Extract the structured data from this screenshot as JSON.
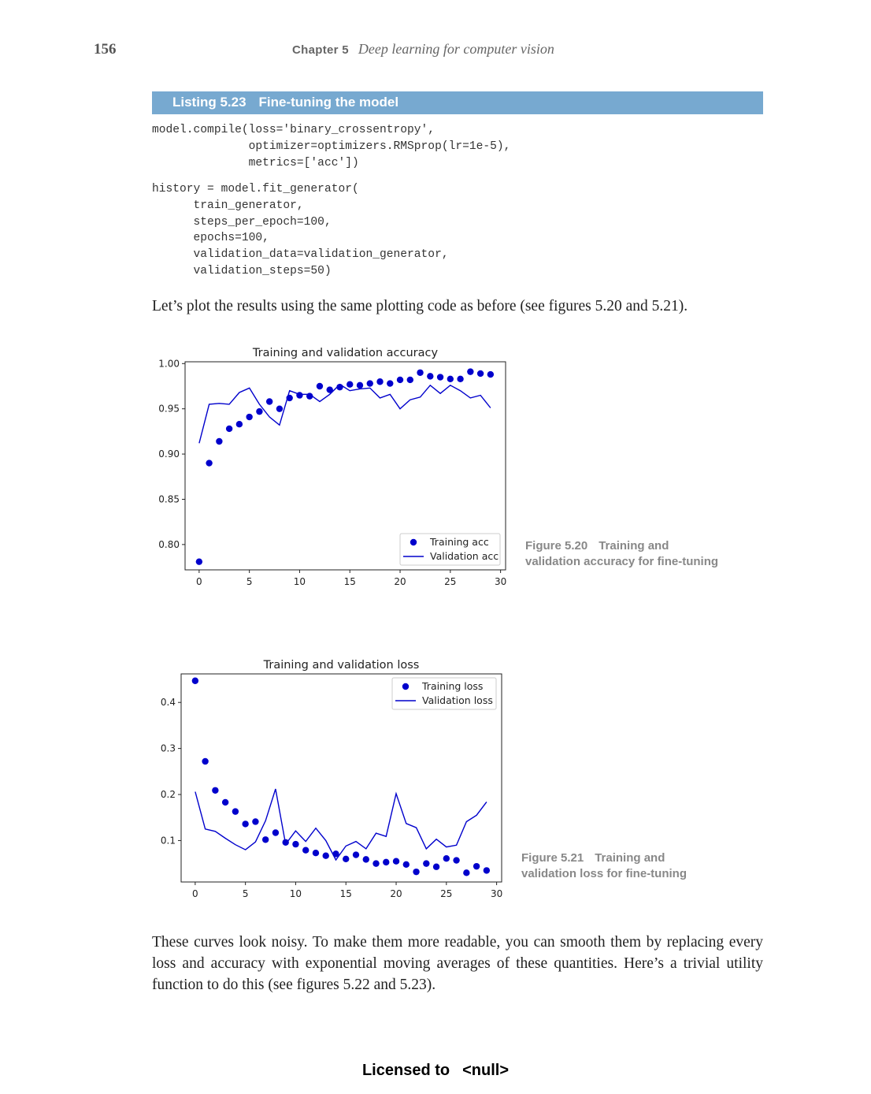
{
  "header": {
    "page_number": "156",
    "chapter_label": "Chapter 5",
    "chapter_title": "Deep learning for computer vision"
  },
  "listing": {
    "label": "Listing 5.23",
    "title": "Fine-tuning the model",
    "code_block_1": "model.compile(loss='binary_crossentropy',\n              optimizer=optimizers.RMSprop(lr=1e-5),\n              metrics=['acc'])",
    "code_block_2": "history = model.fit_generator(\n      train_generator,\n      steps_per_epoch=100,\n      epochs=100,\n      validation_data=validation_generator,\n      validation_steps=50)"
  },
  "body": {
    "paragraph_1": "Let’s plot the results using the same plotting code as before (see figures 5.20 and 5.21).",
    "paragraph_2": "These curves look noisy. To make them more readable, you can smooth them by replacing every loss and accuracy with exponential moving averages of these quantities. Here’s a trivial utility function to do this (see figures 5.22 and 5.23)."
  },
  "figures": [
    {
      "number": "Figure 5.20",
      "caption_line_1": "Training and",
      "caption_line_2": "validation accuracy for fine-tuning"
    },
    {
      "number": "Figure 5.21",
      "caption_line_1": "Training and",
      "caption_line_2": "validation loss for fine-tuning"
    }
  ],
  "footer": {
    "licensed_to": "Licensed to",
    "licensee": "<null>"
  },
  "colors": {
    "listing_bar": "#77a9d0",
    "series": "#0000cc"
  },
  "chart_data": [
    {
      "type": "line",
      "title": "Training and validation accuracy",
      "xlabel": "",
      "ylabel": "",
      "xlim": [
        -1.4,
        30.5
      ],
      "ylim": [
        0.772,
        1.002
      ],
      "x_ticks": [
        0,
        5,
        10,
        15,
        20,
        25,
        30
      ],
      "y_ticks": [
        0.8,
        0.85,
        0.9,
        0.95,
        1.0
      ],
      "y_tick_labels": [
        "0.80",
        "0.85",
        "0.90",
        "0.95",
        "1.00"
      ],
      "grid": false,
      "legend_position": "bottom-right",
      "x": [
        0,
        1,
        2,
        3,
        4,
        5,
        6,
        7,
        8,
        9,
        10,
        11,
        12,
        13,
        14,
        15,
        16,
        17,
        18,
        19,
        20,
        21,
        22,
        23,
        24,
        25,
        26,
        27,
        28,
        29
      ],
      "series": [
        {
          "name": "Training acc",
          "style": "dots",
          "values": [
            0.781,
            0.89,
            0.914,
            0.928,
            0.933,
            0.941,
            0.947,
            0.958,
            0.95,
            0.962,
            0.965,
            0.964,
            0.975,
            0.971,
            0.974,
            0.977,
            0.976,
            0.978,
            0.98,
            0.978,
            0.982,
            0.982,
            0.99,
            0.986,
            0.985,
            0.983,
            0.983,
            0.991,
            0.989,
            0.988
          ]
        },
        {
          "name": "Validation acc",
          "style": "line",
          "values": [
            0.912,
            0.955,
            0.956,
            0.955,
            0.968,
            0.973,
            0.955,
            0.941,
            0.932,
            0.97,
            0.966,
            0.966,
            0.958,
            0.966,
            0.977,
            0.97,
            0.972,
            0.973,
            0.962,
            0.966,
            0.95,
            0.96,
            0.963,
            0.976,
            0.967,
            0.976,
            0.97,
            0.962,
            0.965,
            0.951
          ]
        }
      ]
    },
    {
      "type": "line",
      "title": "Training and validation loss",
      "xlabel": "",
      "ylabel": "",
      "xlim": [
        -1.4,
        30.5
      ],
      "ylim": [
        0.01,
        0.462
      ],
      "x_ticks": [
        0,
        5,
        10,
        15,
        20,
        25,
        30
      ],
      "y_ticks": [
        0.1,
        0.2,
        0.3,
        0.4
      ],
      "y_tick_labels": [
        "0.1",
        "0.2",
        "0.3",
        "0.4"
      ],
      "grid": false,
      "legend_position": "top-right",
      "x": [
        0,
        1,
        2,
        3,
        4,
        5,
        6,
        7,
        8,
        9,
        10,
        11,
        12,
        13,
        14,
        15,
        16,
        17,
        18,
        19,
        20,
        21,
        22,
        23,
        24,
        25,
        26,
        27,
        28,
        29
      ],
      "series": [
        {
          "name": "Training loss",
          "style": "dots",
          "values": [
            0.447,
            0.272,
            0.209,
            0.183,
            0.163,
            0.136,
            0.141,
            0.102,
            0.117,
            0.096,
            0.092,
            0.079,
            0.073,
            0.067,
            0.071,
            0.06,
            0.069,
            0.059,
            0.05,
            0.053,
            0.055,
            0.048,
            0.032,
            0.05,
            0.043,
            0.061,
            0.057,
            0.03,
            0.044,
            0.035
          ]
        },
        {
          "name": "Validation loss",
          "style": "line",
          "values": [
            0.206,
            0.125,
            0.12,
            0.105,
            0.091,
            0.08,
            0.097,
            0.143,
            0.212,
            0.092,
            0.121,
            0.098,
            0.127,
            0.1,
            0.058,
            0.088,
            0.098,
            0.082,
            0.116,
            0.109,
            0.202,
            0.137,
            0.128,
            0.082,
            0.103,
            0.086,
            0.09,
            0.141,
            0.155,
            0.184
          ]
        }
      ]
    }
  ]
}
